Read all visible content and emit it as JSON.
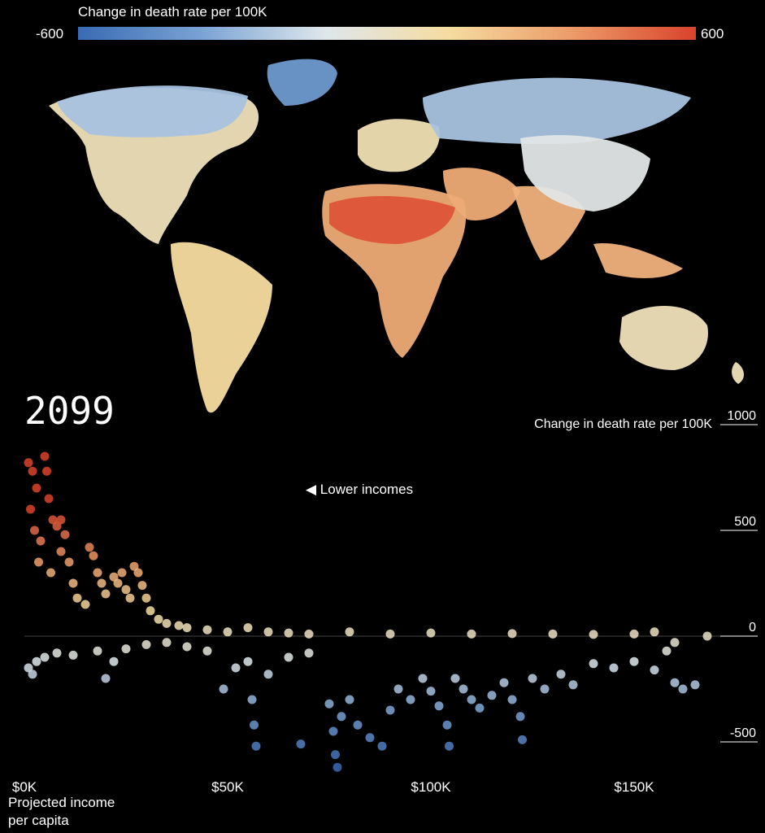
{
  "legend": {
    "title": "Change in death rate per 100K",
    "min_label": "-600",
    "max_label": "600",
    "colors": [
      "#3a6ab3",
      "#7aa3d4",
      "#dfe7ec",
      "#f5dca0",
      "#ec9b68",
      "#d9432c"
    ]
  },
  "year": "2099",
  "chart_data": {
    "type": "scatter",
    "title": "",
    "xlabel": "Projected income per capita",
    "ylabel": "Change in death rate per 100K",
    "xlim": [
      0,
      170000
    ],
    "ylim": [
      -700,
      1000
    ],
    "x_ticks": [
      {
        "value": 0,
        "label": "$0K"
      },
      {
        "value": 50000,
        "label": "$50K"
      },
      {
        "value": 100000,
        "label": "$100K"
      },
      {
        "value": 150000,
        "label": "$150K"
      }
    ],
    "y_ticks": [
      {
        "value": 1000,
        "label": "1000"
      },
      {
        "value": 500,
        "label": "500"
      },
      {
        "value": 0,
        "label": "0"
      },
      {
        "value": -500,
        "label": "-500"
      }
    ],
    "annotation": "◀ Lower incomes",
    "color_scale": [
      -600,
      600
    ],
    "points": [
      [
        1000,
        820
      ],
      [
        2000,
        780
      ],
      [
        3000,
        700
      ],
      [
        1500,
        600
      ],
      [
        2500,
        500
      ],
      [
        4000,
        450
      ],
      [
        5000,
        850
      ],
      [
        5500,
        780
      ],
      [
        6000,
        650
      ],
      [
        7000,
        550
      ],
      [
        8000,
        520
      ],
      [
        9000,
        400
      ],
      [
        3500,
        350
      ],
      [
        6500,
        300
      ],
      [
        9000,
        550
      ],
      [
        10000,
        480
      ],
      [
        11000,
        350
      ],
      [
        12000,
        250
      ],
      [
        13000,
        180
      ],
      [
        15000,
        150
      ],
      [
        16000,
        420
      ],
      [
        17000,
        380
      ],
      [
        18000,
        300
      ],
      [
        19000,
        250
      ],
      [
        20000,
        200
      ],
      [
        22000,
        280
      ],
      [
        23000,
        250
      ],
      [
        24000,
        300
      ],
      [
        25000,
        220
      ],
      [
        26000,
        180
      ],
      [
        27000,
        330
      ],
      [
        28000,
        300
      ],
      [
        29000,
        240
      ],
      [
        30000,
        180
      ],
      [
        31000,
        120
      ],
      [
        33000,
        80
      ],
      [
        35000,
        60
      ],
      [
        38000,
        50
      ],
      [
        40000,
        40
      ],
      [
        45000,
        30
      ],
      [
        50000,
        20
      ],
      [
        55000,
        40
      ],
      [
        60000,
        20
      ],
      [
        65000,
        15
      ],
      [
        70000,
        10
      ],
      [
        80000,
        20
      ],
      [
        90000,
        10
      ],
      [
        100000,
        15
      ],
      [
        110000,
        10
      ],
      [
        120000,
        12
      ],
      [
        130000,
        10
      ],
      [
        140000,
        8
      ],
      [
        150000,
        10
      ],
      [
        155000,
        20
      ],
      [
        160000,
        -30
      ],
      [
        168000,
        0
      ],
      [
        1000,
        -150
      ],
      [
        2000,
        -180
      ],
      [
        3000,
        -120
      ],
      [
        5000,
        -100
      ],
      [
        8000,
        -80
      ],
      [
        12000,
        -90
      ],
      [
        18000,
        -70
      ],
      [
        20000,
        -200
      ],
      [
        22000,
        -120
      ],
      [
        25000,
        -60
      ],
      [
        30000,
        -40
      ],
      [
        35000,
        -30
      ],
      [
        40000,
        -50
      ],
      [
        45000,
        -70
      ],
      [
        49000,
        -250
      ],
      [
        52000,
        -150
      ],
      [
        55000,
        -120
      ],
      [
        56000,
        -300
      ],
      [
        56500,
        -420
      ],
      [
        57000,
        -520
      ],
      [
        60000,
        -180
      ],
      [
        65000,
        -100
      ],
      [
        68000,
        -510
      ],
      [
        70000,
        -80
      ],
      [
        75000,
        -320
      ],
      [
        76000,
        -450
      ],
      [
        76500,
        -560
      ],
      [
        77000,
        -620
      ],
      [
        78000,
        -380
      ],
      [
        80000,
        -300
      ],
      [
        82000,
        -420
      ],
      [
        85000,
        -480
      ],
      [
        88000,
        -520
      ],
      [
        90000,
        -350
      ],
      [
        92000,
        -250
      ],
      [
        95000,
        -300
      ],
      [
        98000,
        -200
      ],
      [
        100000,
        -260
      ],
      [
        102000,
        -330
      ],
      [
        104000,
        -420
      ],
      [
        104500,
        -520
      ],
      [
        106000,
        -200
      ],
      [
        108000,
        -250
      ],
      [
        110000,
        -300
      ],
      [
        112000,
        -340
      ],
      [
        115000,
        -280
      ],
      [
        118000,
        -220
      ],
      [
        120000,
        -300
      ],
      [
        122000,
        -380
      ],
      [
        122500,
        -490
      ],
      [
        125000,
        -200
      ],
      [
        128000,
        -250
      ],
      [
        132000,
        -180
      ],
      [
        135000,
        -230
      ],
      [
        140000,
        -130
      ],
      [
        145000,
        -150
      ],
      [
        150000,
        -120
      ],
      [
        155000,
        -160
      ],
      [
        158000,
        -70
      ],
      [
        160000,
        -220
      ],
      [
        162000,
        -250
      ],
      [
        165000,
        -230
      ]
    ]
  },
  "map_regions": [
    {
      "name": "North America",
      "value": 40
    },
    {
      "name": "Greenland",
      "value": -400
    },
    {
      "name": "South America",
      "value": 120
    },
    {
      "name": "Europe",
      "value": 60
    },
    {
      "name": "Russia",
      "value": -250
    },
    {
      "name": "Africa",
      "value": 300
    },
    {
      "name": "Sahel",
      "value": 550
    },
    {
      "name": "Middle East",
      "value": 300
    },
    {
      "name": "South Asia",
      "value": 280
    },
    {
      "name": "China",
      "value": -100
    },
    {
      "name": "Australia",
      "value": 40
    }
  ]
}
